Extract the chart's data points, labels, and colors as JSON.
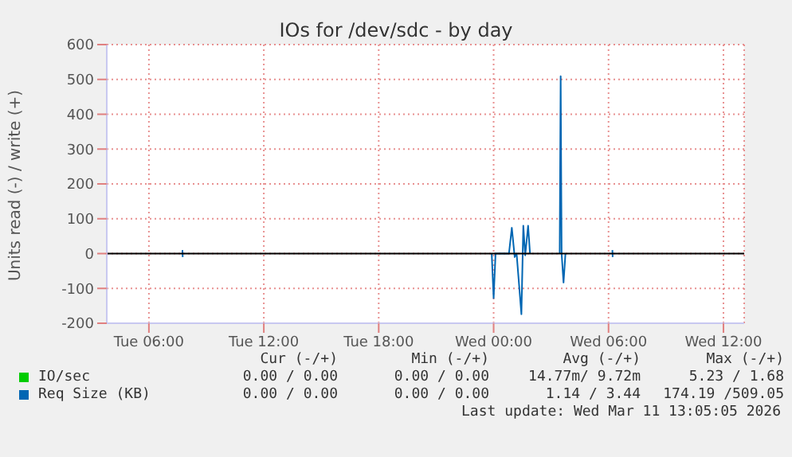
{
  "chart_data": {
    "type": "line",
    "title": "IOs for /dev/sdc - by day",
    "ylabel": "Units read (-) / write (+)",
    "xlim": [
      "2026-03-10T03:48",
      "2026-03-11T13:05"
    ],
    "xticks": [
      {
        "value": "2026-03-10T06:00",
        "label": "Tue 06:00"
      },
      {
        "value": "2026-03-10T12:00",
        "label": "Tue 12:00"
      },
      {
        "value": "2026-03-10T18:00",
        "label": "Tue 18:00"
      },
      {
        "value": "2026-03-11T00:00",
        "label": "Wed 00:00"
      },
      {
        "value": "2026-03-11T06:00",
        "label": "Wed 06:00"
      },
      {
        "value": "2026-03-11T12:00",
        "label": "Wed 12:00"
      }
    ],
    "ylim": [
      -200,
      600
    ],
    "yticks": [
      -200,
      -100,
      0,
      100,
      200,
      300,
      400,
      500,
      600
    ],
    "grid": true,
    "legend": "bottom",
    "line_style": "solid",
    "marker": "none",
    "ref_lines": [
      {
        "axis": "y",
        "value": 0,
        "label": null,
        "color": "#000000"
      }
    ],
    "series": [
      {
        "name": "IO/sec",
        "color": "#00cc00"
      },
      {
        "name": "Req Size (KB)",
        "color": "#0066b3",
        "x": [
          "2026-03-10T07:45",
          "2026-03-10T07:46",
          "2026-03-10T08:00",
          "2026-03-10T23:54",
          "2026-03-11T00:00",
          "2026-03-11T00:06",
          "2026-03-11T00:48",
          "2026-03-11T00:57",
          "2026-03-11T01:06",
          "2026-03-11T01:12",
          "2026-03-11T01:27",
          "2026-03-11T01:33",
          "2026-03-11T01:39",
          "2026-03-11T01:48",
          "2026-03-11T01:54",
          "2026-03-11T02:00",
          "2026-03-11T03:27",
          "2026-03-11T03:30",
          "2026-03-11T03:33",
          "2026-03-11T03:39",
          "2026-03-11T03:45",
          "2026-03-11T04:00",
          "2026-03-11T06:12",
          "2026-03-11T06:13"
        ],
        "values": [
          10,
          -10,
          null,
          0,
          -128,
          0,
          0,
          74,
          -10,
          0,
          -174,
          80,
          -5,
          80,
          0,
          null,
          0,
          509,
          0,
          -83,
          0,
          null,
          10,
          -10
        ]
      }
    ],
    "annotations": [
      "Cur (-/+)",
      "Min (-/+)",
      "Avg (-/+)",
      "Max (-/+)",
      "0.00 / 0.00",
      "0.00 / 0.00",
      "14.77m/ 9.72m",
      "5.23 / 1.68",
      "0.00 / 0.00",
      "0.00 / 0.00",
      "1.14 / 3.44",
      "174.19 /509.05",
      "Last update: Wed Mar 11 13:05:05 2026"
    ]
  }
}
